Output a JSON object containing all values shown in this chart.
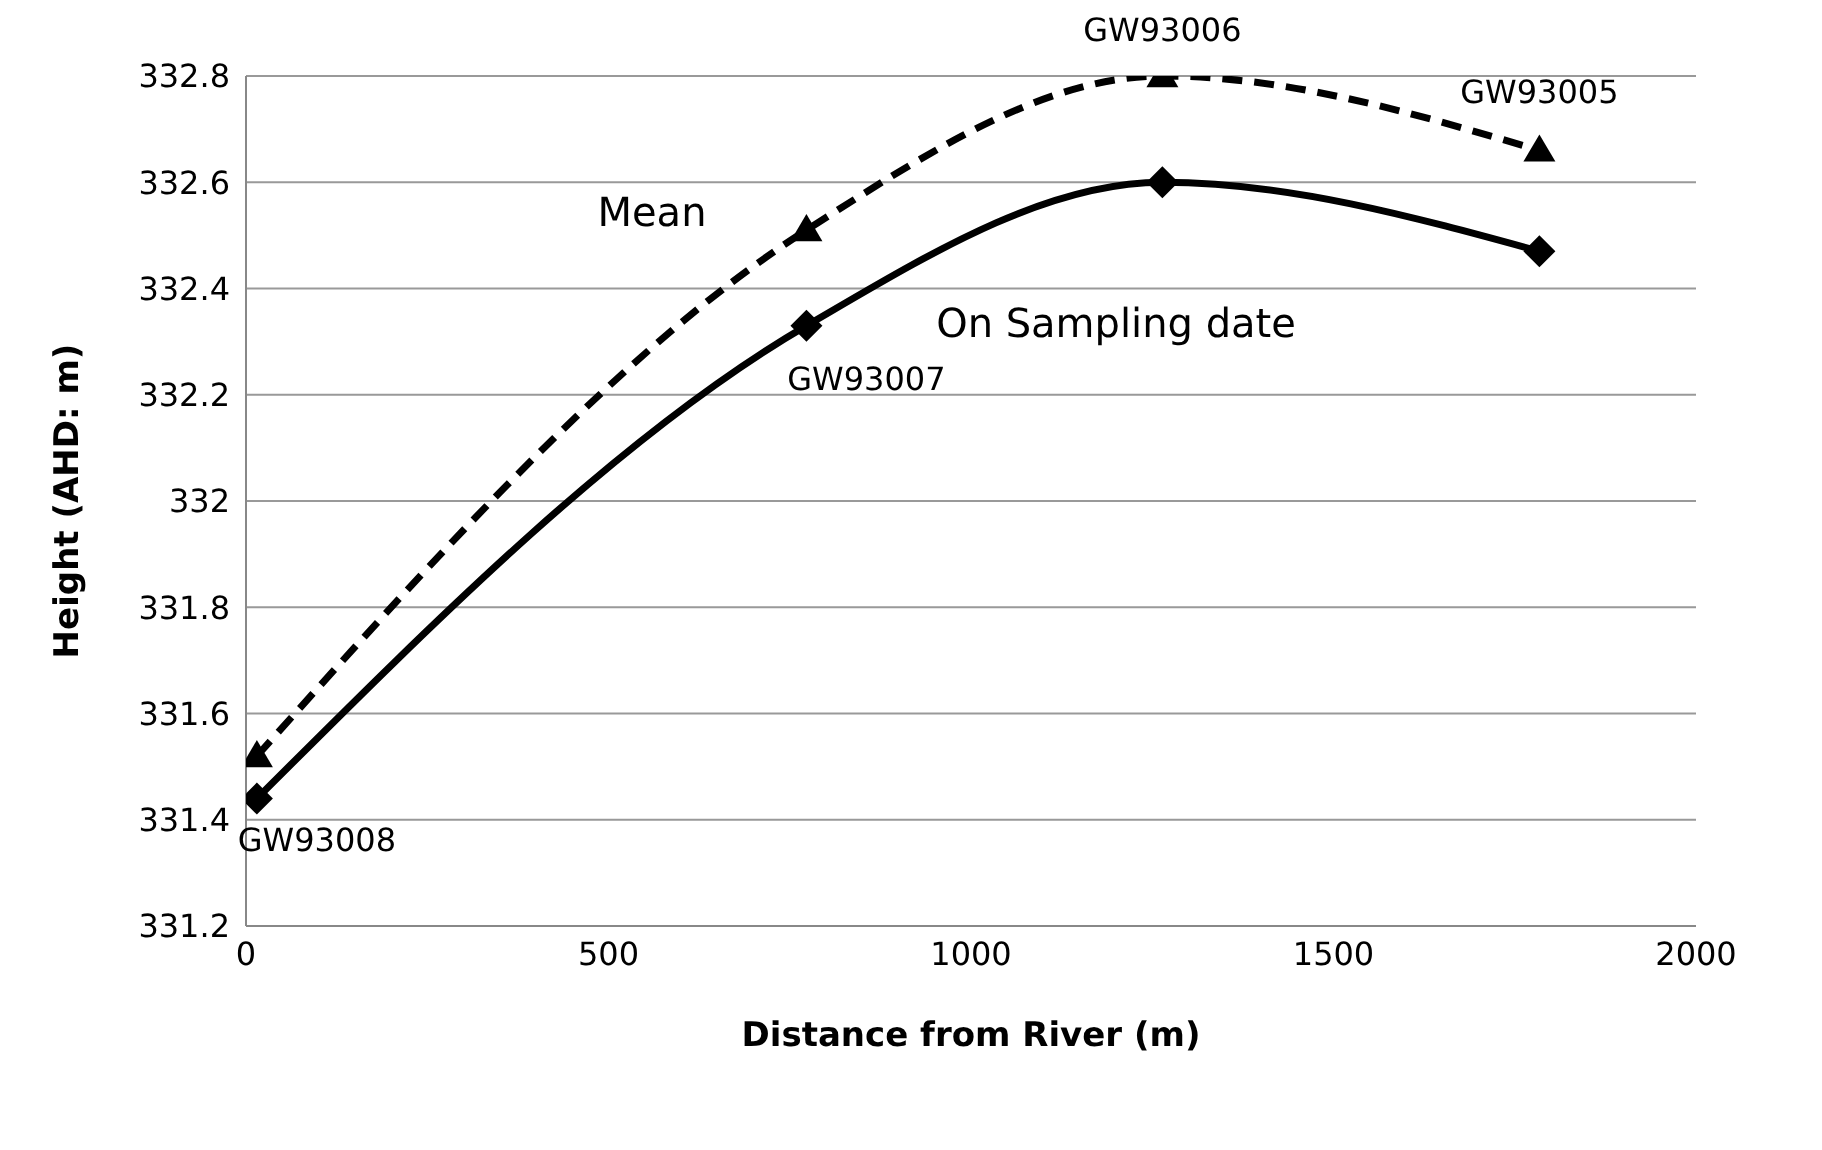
{
  "chart_data": {
    "type": "line",
    "xlabel": "Distance from River (m)",
    "ylabel": "Height (AHD: m)",
    "x": [
      15,
      773,
      1264,
      1784
    ],
    "series": [
      {
        "name": "Mean",
        "color": "#000000",
        "values": [
          331.52,
          332.51,
          332.8,
          332.66
        ],
        "marker": "triangle",
        "line_style": "dashed"
      },
      {
        "name": "On Sampling date",
        "color": "#000000",
        "values": [
          331.44,
          332.33,
          332.6,
          332.47
        ],
        "marker": "diamond",
        "line_style": "solid"
      }
    ],
    "xlim": [
      0,
      2000
    ],
    "xticks": [
      0,
      500,
      1000,
      1500,
      2000
    ],
    "ylim": [
      331.2,
      332.8
    ],
    "yticks": [
      331.2,
      331.4,
      331.6,
      331.8,
      332,
      332.2,
      332.4,
      332.6,
      332.8
    ],
    "grid": "y",
    "legend": false,
    "annotations": [
      {
        "text": "GW93008",
        "x": 15,
        "y": 331.44
      },
      {
        "text": "GW93007",
        "x": 773,
        "y": 332.33
      },
      {
        "text": "GW93006",
        "x": 1264,
        "y": 332.8
      },
      {
        "text": "GW93005",
        "x": 1784,
        "y": 332.66
      }
    ]
  }
}
